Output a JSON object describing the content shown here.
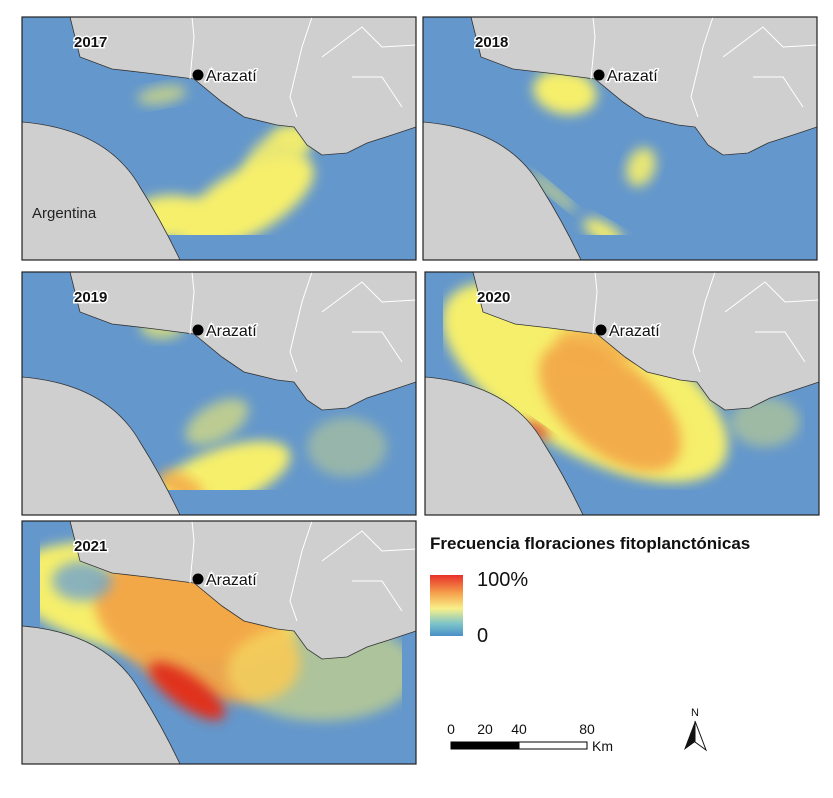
{
  "panels": [
    {
      "year": "2017",
      "place": "Arazatí"
    },
    {
      "year": "2018",
      "place": "Arazatí"
    },
    {
      "year": "2019",
      "place": "Arazatí"
    },
    {
      "year": "2020",
      "place": "Arazatí"
    },
    {
      "year": "2021",
      "place": "Arazatí"
    }
  ],
  "country": "Argentina",
  "legend": {
    "title": "Frecuencia floraciones fitoplanctónicas",
    "max": "100%",
    "min": "0"
  },
  "scale": {
    "ticks": [
      0,
      20,
      40,
      80
    ],
    "unit": "Km"
  },
  "north": "N"
}
